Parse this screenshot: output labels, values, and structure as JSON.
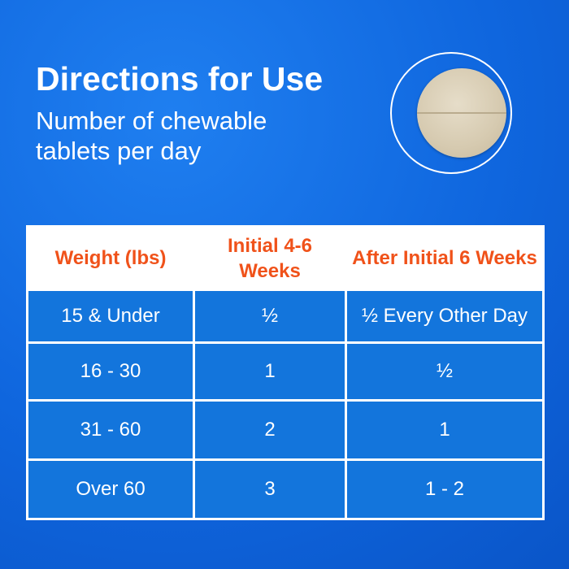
{
  "title": "Directions for Use",
  "subtitle": "Number of chewable tablets per day",
  "image": {
    "icon": "chewable-tablet-photo"
  },
  "colors": {
    "background": "#0f66de",
    "header_text": "#f0521a",
    "cell_bg": "#1375dc"
  },
  "table": {
    "headers": [
      "Weight (lbs)",
      "Initial 4-6 Weeks",
      "After Initial 6 Weeks"
    ],
    "rows": [
      [
        "15 & Under",
        "½",
        "½ Every Other Day"
      ],
      [
        "16 - 30",
        "1",
        "½"
      ],
      [
        "31 - 60",
        "2",
        "1"
      ],
      [
        "Over 60",
        "3",
        "1 - 2"
      ]
    ]
  }
}
